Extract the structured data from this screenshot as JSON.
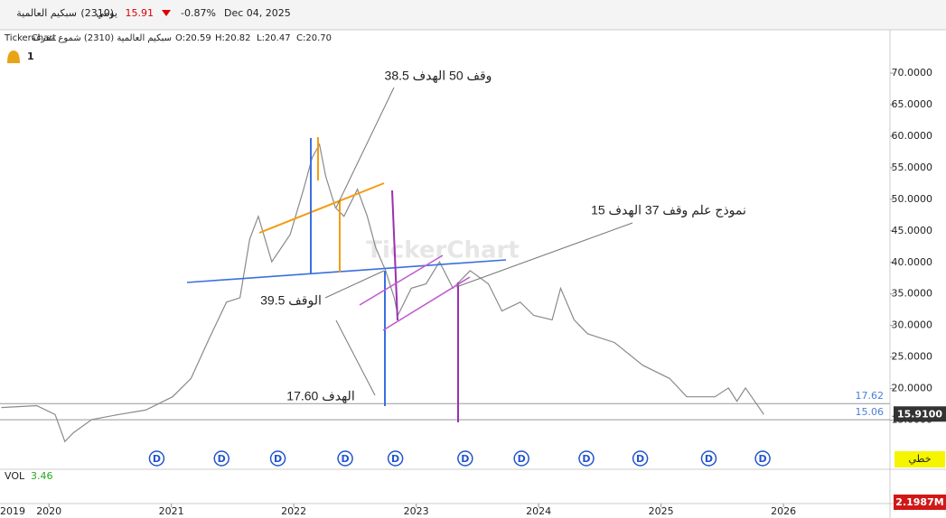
{
  "chart_data": {
    "type": "line",
    "header": {
      "name": "سبكيم العالمية",
      "code": "(2310)",
      "period": "يومي",
      "price": "15.91",
      "change": "-0.87%",
      "date": "Dec 04, 2025"
    },
    "subheader": {
      "brand": "TickerChart",
      "desc": "سبكيم العالمية (2310) شموع مفرغة",
      "open": "O:20.59",
      "high": "H:20.82",
      "low": "L:20.47",
      "close": "C:20.70"
    },
    "alerts": "1",
    "watermark": "TickerChart",
    "annotations": [
      "وقف 50 الهدف 38.5",
      "نموذج علم وقف 37 الهدف 15",
      "الوقف 39.5",
      "الهدف 17.60"
    ],
    "series": [
      {
        "name": "سبكيم العالمية",
        "color": "#8a8a8a",
        "x": [
          2019.61,
          2019.9,
          2020.05,
          2020.13,
          2020.2,
          2020.35,
          2020.57,
          2020.79,
          2021.01,
          2021.16,
          2021.31,
          2021.45,
          2021.56,
          2021.64,
          2021.71,
          2021.82,
          2021.97,
          2022.08,
          2022.15,
          2022.21,
          2022.26,
          2022.34,
          2022.41,
          2022.52,
          2022.6,
          2022.67,
          2022.75,
          2022.82,
          2022.85,
          2022.96,
          2023.08,
          2023.19,
          2023.3,
          2023.44,
          2023.59,
          2023.7,
          2023.85,
          2023.96,
          2024.11,
          2024.18,
          2024.29,
          2024.4,
          2024.62,
          2024.85,
          2025.07,
          2025.21,
          2025.44,
          2025.55,
          2025.62,
          2025.69,
          2025.84
        ],
        "values": [
          17.0,
          17.3,
          15.9,
          11.6,
          13.0,
          15.1,
          15.9,
          16.6,
          18.7,
          21.6,
          28.0,
          33.7,
          34.4,
          43.7,
          47.3,
          40.1,
          44.4,
          51.6,
          56.6,
          58.7,
          53.7,
          48.7,
          47.3,
          51.6,
          47.3,
          42.3,
          38.7,
          34.4,
          31.6,
          35.9,
          36.6,
          40.1,
          35.9,
          38.7,
          36.6,
          32.3,
          33.7,
          31.6,
          30.9,
          35.9,
          30.9,
          28.7,
          27.3,
          23.7,
          21.6,
          18.7,
          18.7,
          20.1,
          18.0,
          20.1,
          15.9
        ]
      }
    ],
    "levels": [
      {
        "value": 17.62,
        "color": "#4a7fd6"
      },
      {
        "value": 15.06,
        "color": "#4a7fd6"
      }
    ],
    "price_label": "15.9100",
    "dividend_label": "D",
    "dividends": [
      2020.88,
      2021.41,
      2021.87,
      2022.42,
      2022.83,
      2023.4,
      2023.86,
      2024.39,
      2024.83,
      2025.39,
      2025.83
    ],
    "scale_mode": "خطي",
    "volume": {
      "label": "VOL",
      "value": "3.46",
      "last": "2.1987M"
    },
    "xlim": [
      2019.6,
      2026.87
    ],
    "xticks": [
      2019,
      2020,
      2021,
      2022,
      2023,
      2024,
      2025,
      2026
    ],
    "ylim": [
      7.5,
      76.3
    ],
    "yticks": [
      {
        "value": 15,
        "label": "15.0000"
      },
      {
        "value": 20,
        "label": "20.0000"
      },
      {
        "value": 25,
        "label": "25.0000"
      },
      {
        "value": 30,
        "label": "30.0000"
      },
      {
        "value": 35,
        "label": "35.0000"
      },
      {
        "value": 40,
        "label": "40.0000"
      },
      {
        "value": 45,
        "label": "45.0000"
      },
      {
        "value": 50,
        "label": "50.0000"
      },
      {
        "value": 55,
        "label": "55.0000"
      },
      {
        "value": 60,
        "label": "60.0000"
      },
      {
        "value": 65,
        "label": "65.0000"
      },
      {
        "value": 70,
        "label": "70.0000"
      }
    ]
  }
}
